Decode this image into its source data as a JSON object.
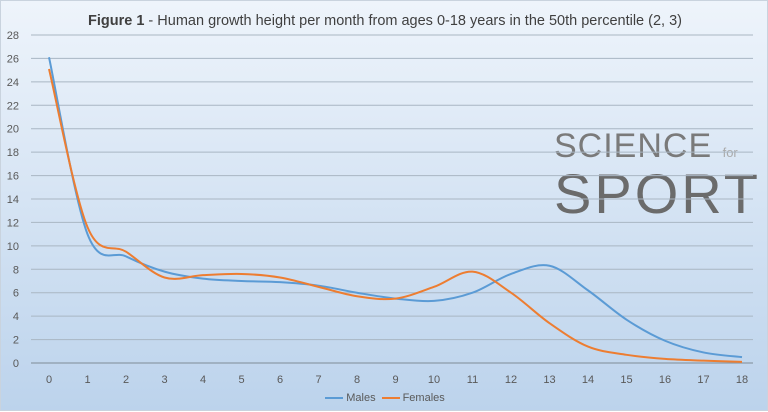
{
  "chart_data": {
    "type": "line",
    "title_bold": "Figure 1",
    "title_rest": " - Human growth height per month from ages 0-18 years in the 50th percentile (2, 3)",
    "x": [
      0,
      1,
      2,
      3,
      4,
      5,
      6,
      7,
      8,
      9,
      10,
      11,
      12,
      13,
      14,
      15,
      16,
      17,
      18
    ],
    "ylim": [
      0,
      28
    ],
    "yticks": [
      0,
      2,
      4,
      6,
      8,
      10,
      12,
      14,
      16,
      18,
      20,
      22,
      24,
      26,
      28
    ],
    "grid": true,
    "legend": "bottom",
    "series": [
      {
        "name": "Males",
        "color": "#5b9bd5",
        "values": [
          26.1,
          11.0,
          9.1,
          7.8,
          7.2,
          7.0,
          6.9,
          6.6,
          6.0,
          5.5,
          5.3,
          6.0,
          7.6,
          8.3,
          6.2,
          3.7,
          1.9,
          0.9,
          0.5
        ]
      },
      {
        "name": "Females",
        "color": "#ed7d31",
        "values": [
          25.1,
          11.6,
          9.5,
          7.3,
          7.5,
          7.6,
          7.3,
          6.5,
          5.7,
          5.5,
          6.5,
          7.8,
          6.0,
          3.4,
          1.4,
          0.7,
          0.35,
          0.2,
          0.1
        ]
      }
    ]
  },
  "watermark": {
    "line1": "SCIENCE",
    "small": "for",
    "line2": "SPORT"
  }
}
